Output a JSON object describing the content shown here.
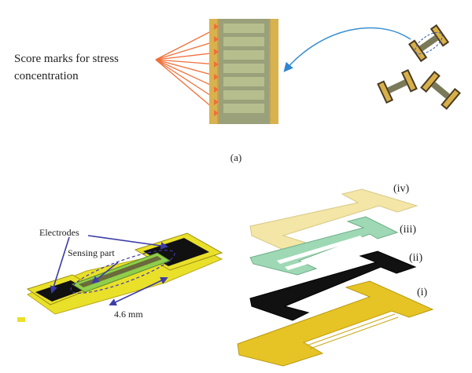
{
  "top": {
    "score_label_line1": "Score marks for stress",
    "score_label_line2": "concentration",
    "panel_label": "(a)"
  },
  "bottom_left": {
    "electrodes_label": "Electrodes",
    "sensing_label": "Sensing part",
    "dimension_label": "4.6 mm"
  },
  "bottom_right": {
    "layers": [
      {
        "label": "(iv)",
        "color": "#f3e6a6"
      },
      {
        "label": "(iii)",
        "color": "#9ed8b4"
      },
      {
        "label": "(ii)",
        "color": "#111111"
      },
      {
        "label": "(i)",
        "color": "#e6c425"
      }
    ]
  },
  "colors": {
    "score_lines": "#f0703a",
    "arrow_blue": "#3a8fd0",
    "dim_arrow": "#3b3ba8",
    "electrode_yellow": "#e9e02a",
    "sensing_green": "#8fcf4a"
  }
}
